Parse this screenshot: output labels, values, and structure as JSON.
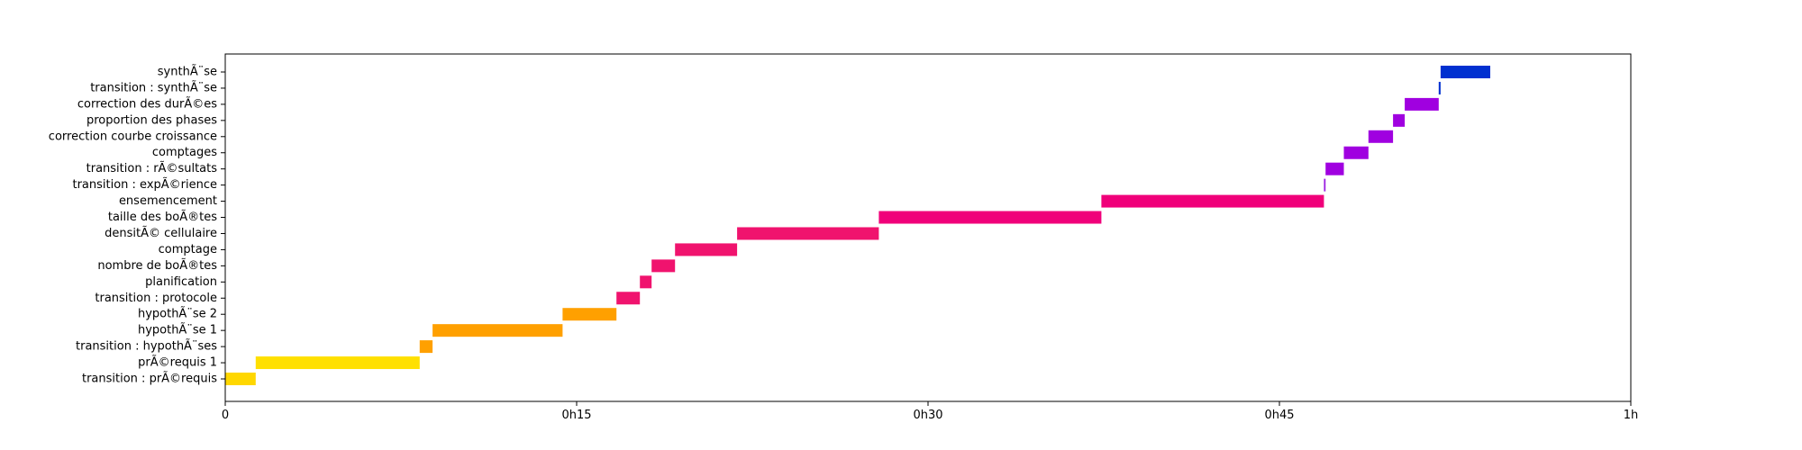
{
  "chart_data": {
    "type": "gantt",
    "title": "",
    "xlabel": "",
    "ylabel": "",
    "x_unit": "minutes",
    "xlim": [
      0,
      60
    ],
    "x_ticks": [
      {
        "value": 0,
        "label": "0"
      },
      {
        "value": 15,
        "label": "0h15"
      },
      {
        "value": 30,
        "label": "0h30"
      },
      {
        "value": 45,
        "label": "0h45"
      },
      {
        "value": 60,
        "label": "1h"
      }
    ],
    "grid": false,
    "legend": "none",
    "tasks": [
      {
        "label": "transition : prÃ©requis",
        "start": 0.0,
        "end": 1.3,
        "color": "#FFD700"
      },
      {
        "label": "prÃ©requis 1",
        "start": 1.3,
        "end": 8.3,
        "color": "#FFE000"
      },
      {
        "label": "transition : hypothÃ¨ses",
        "start": 8.3,
        "end": 8.85,
        "color": "#FFA000"
      },
      {
        "label": "hypothÃ¨se 1",
        "start": 8.85,
        "end": 14.4,
        "color": "#FFA000"
      },
      {
        "label": "hypothÃ¨se 2",
        "start": 14.4,
        "end": 16.7,
        "color": "#FFA000"
      },
      {
        "label": "transition : protocole",
        "start": 16.7,
        "end": 17.7,
        "color": "#F0136E"
      },
      {
        "label": "planification",
        "start": 17.7,
        "end": 18.2,
        "color": "#F0136E"
      },
      {
        "label": "nombre de boÃ®tes",
        "start": 18.2,
        "end": 19.2,
        "color": "#F0136E"
      },
      {
        "label": "comptage",
        "start": 19.2,
        "end": 21.85,
        "color": "#F0136E"
      },
      {
        "label": "densitÃ© cellulaire",
        "start": 21.85,
        "end": 27.9,
        "color": "#F0136E"
      },
      {
        "label": "taille des boÃ®tes",
        "start": 27.9,
        "end": 37.4,
        "color": "#F0007A"
      },
      {
        "label": "ensemencement",
        "start": 37.4,
        "end": 46.9,
        "color": "#F0007A"
      },
      {
        "label": "transition : expÃ©rience",
        "start": 46.9,
        "end": 46.97,
        "color": "#9B1FE0"
      },
      {
        "label": "transition : rÃ©sultats",
        "start": 46.97,
        "end": 47.75,
        "color": "#A000E0"
      },
      {
        "label": "comptages",
        "start": 47.75,
        "end": 48.8,
        "color": "#A000E0"
      },
      {
        "label": "correction courbe croissance",
        "start": 48.8,
        "end": 49.85,
        "color": "#A000E0"
      },
      {
        "label": "proportion des phases",
        "start": 49.85,
        "end": 50.35,
        "color": "#A000E0"
      },
      {
        "label": "correction des durÃ©es",
        "start": 50.35,
        "end": 51.8,
        "color": "#A000E0"
      },
      {
        "label": "transition : synthÃ¨se",
        "start": 51.8,
        "end": 51.88,
        "color": "#0030D0"
      },
      {
        "label": "synthÃ¨se",
        "start": 51.88,
        "end": 54.0,
        "color": "#0030D0"
      }
    ]
  }
}
